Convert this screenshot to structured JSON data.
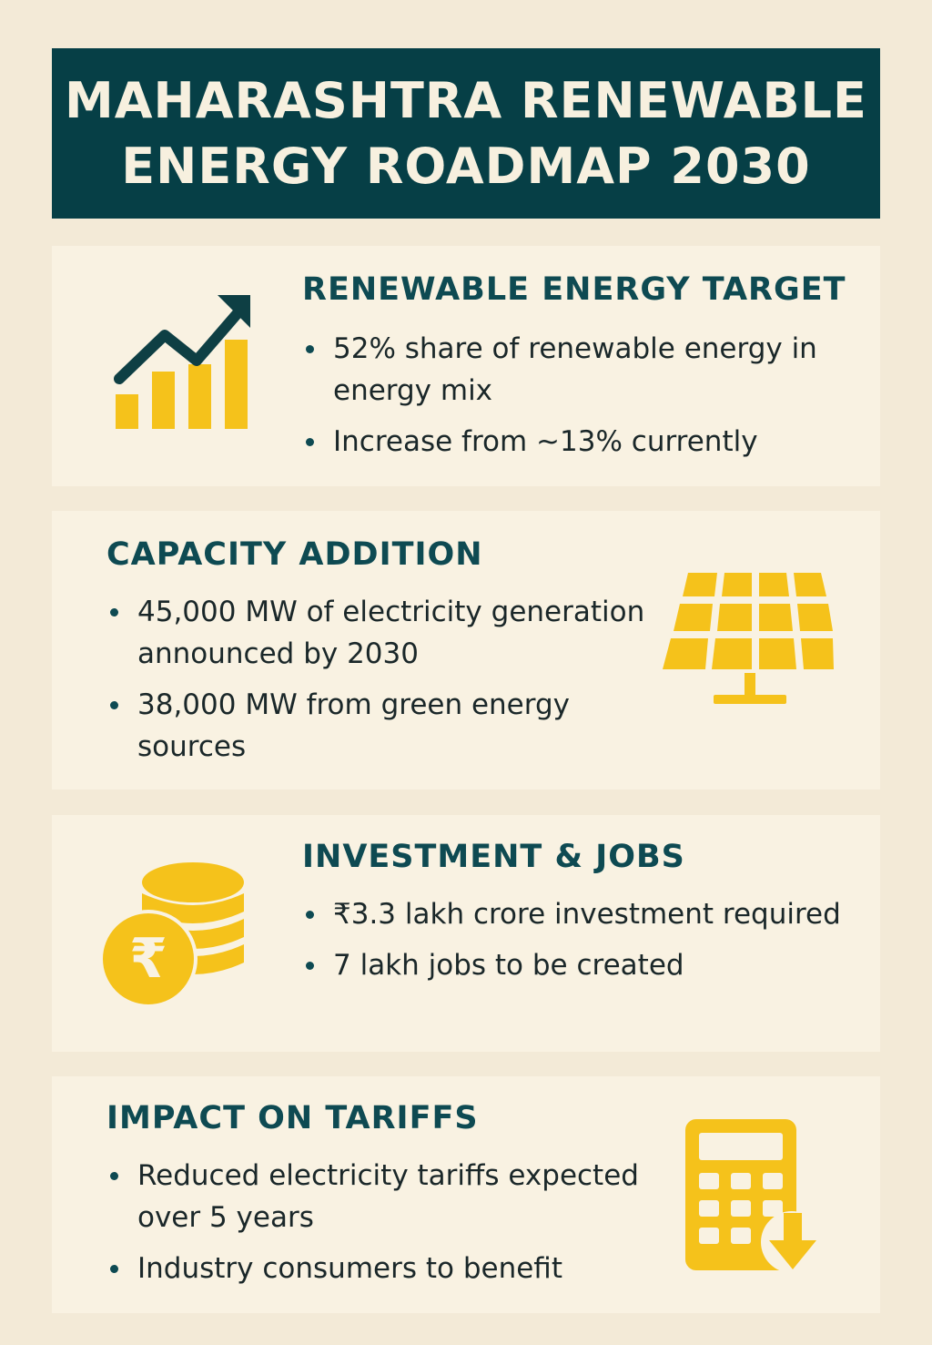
{
  "header": {
    "title_line1": "MAHARASHTRA RENEWABLE",
    "title_line2": "ENERGY ROADMAP 2030"
  },
  "sections": [
    {
      "title": "RENEWABLE ENERGY TARGET",
      "icon": "growth-chart-icon",
      "bullets": [
        "52% share of renewable energy in energy mix",
        "Increase from ~13% currently"
      ]
    },
    {
      "title": "CAPACITY ADDITION",
      "icon": "solar-panel-icon",
      "bullets": [
        "45,000 MW of electricity generation announced by 2030",
        "38,000 MW from green energy sources"
      ]
    },
    {
      "title": "INVESTMENT & JOBS",
      "icon": "rupee-coins-icon",
      "rupee_symbol": "₹",
      "bullets": [
        "₹3.3 lakh crore investment required",
        "7 lakh jobs to be created"
      ]
    },
    {
      "title": "IMPACT ON TARIFFS",
      "icon": "calculator-down-icon",
      "bullets": [
        "Reduced electricity tariffs expected over 5 years",
        "Industry consumers to benefit"
      ]
    }
  ],
  "colors": {
    "background": "#f3ead7",
    "header": "#063f46",
    "heading_text": "#0e4a52",
    "accent_yellow": "#f5c21b"
  }
}
